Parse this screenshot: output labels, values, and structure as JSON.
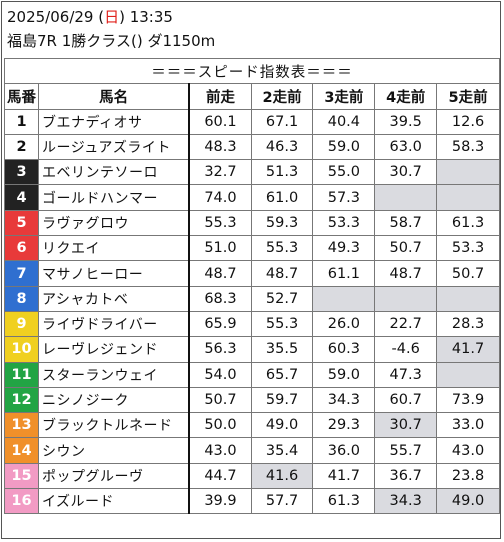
{
  "header": {
    "datetime_prefix": "2025/06/29 (",
    "weekday": "日",
    "datetime_suffix": ") 13:35",
    "race_info": "福島7R 1勝クラス() ダ1150m"
  },
  "table": {
    "title": "＝＝＝スピード指数表＝＝＝",
    "columns": [
      "馬番",
      "馬名",
      "前走",
      "2走前",
      "3走前",
      "4走前",
      "5走前"
    ],
    "rows": [
      {
        "no": "1",
        "name": "ブエナディオサ",
        "v": [
          "60.1",
          "67.1",
          "40.4",
          "39.5",
          "12.6"
        ],
        "gray": []
      },
      {
        "no": "2",
        "name": "ルージュアズライト",
        "v": [
          "48.3",
          "46.3",
          "59.0",
          "63.0",
          "58.3"
        ],
        "gray": []
      },
      {
        "no": "3",
        "name": "エベリンテソーロ",
        "v": [
          "32.7",
          "51.3",
          "55.0",
          "30.7",
          ""
        ],
        "gray": [
          4
        ]
      },
      {
        "no": "4",
        "name": "ゴールドハンマー",
        "v": [
          "74.0",
          "61.0",
          "57.3",
          "",
          ""
        ],
        "gray": [
          3,
          4
        ]
      },
      {
        "no": "5",
        "name": "ラヴァグロウ",
        "v": [
          "55.3",
          "59.3",
          "53.3",
          "58.7",
          "61.3"
        ],
        "gray": []
      },
      {
        "no": "6",
        "name": "リクエイ",
        "v": [
          "51.0",
          "55.3",
          "49.3",
          "50.7",
          "53.3"
        ],
        "gray": []
      },
      {
        "no": "7",
        "name": "マサノヒーロー",
        "v": [
          "48.7",
          "48.7",
          "61.1",
          "48.7",
          "50.7"
        ],
        "gray": []
      },
      {
        "no": "8",
        "name": "アシャカトベ",
        "v": [
          "68.3",
          "52.7",
          "",
          "",
          ""
        ],
        "gray": [
          2,
          3,
          4
        ]
      },
      {
        "no": "9",
        "name": "ライヴドライバー",
        "v": [
          "65.9",
          "55.3",
          "26.0",
          "22.7",
          "28.3"
        ],
        "gray": []
      },
      {
        "no": "10",
        "name": "レーヴレジェンド",
        "v": [
          "56.3",
          "35.5",
          "60.3",
          "-4.6",
          "41.7"
        ],
        "gray": [
          4
        ]
      },
      {
        "no": "11",
        "name": "スターランウェイ",
        "v": [
          "54.0",
          "65.7",
          "59.0",
          "47.3",
          ""
        ],
        "gray": [
          4
        ]
      },
      {
        "no": "12",
        "name": "ニシノジーク",
        "v": [
          "50.7",
          "59.7",
          "34.3",
          "60.7",
          "73.9"
        ],
        "gray": []
      },
      {
        "no": "13",
        "name": "ブラックトルネード",
        "v": [
          "50.0",
          "49.0",
          "29.3",
          "30.7",
          "33.0"
        ],
        "gray": [
          3
        ]
      },
      {
        "no": "14",
        "name": "シウン",
        "v": [
          "43.0",
          "35.4",
          "36.0",
          "55.7",
          "43.0"
        ],
        "gray": []
      },
      {
        "no": "15",
        "name": "ポップグルーヴ",
        "v": [
          "44.7",
          "41.6",
          "41.7",
          "36.7",
          "23.8"
        ],
        "gray": [
          1
        ]
      },
      {
        "no": "16",
        "name": "イズルード",
        "v": [
          "39.9",
          "57.7",
          "61.3",
          "34.3",
          "49.0"
        ],
        "gray": [
          3,
          4
        ]
      }
    ]
  },
  "colors": {
    "waku1": "#ffffff",
    "waku2": "#222222",
    "waku3": "#e83a3a",
    "waku4": "#2f6fd0",
    "waku5": "#f0d020",
    "waku6": "#22a444",
    "waku7": "#f0902a",
    "waku8": "#f29bc4",
    "gray_cell": "#dadbe0",
    "weekday_red": "#e0201b"
  }
}
